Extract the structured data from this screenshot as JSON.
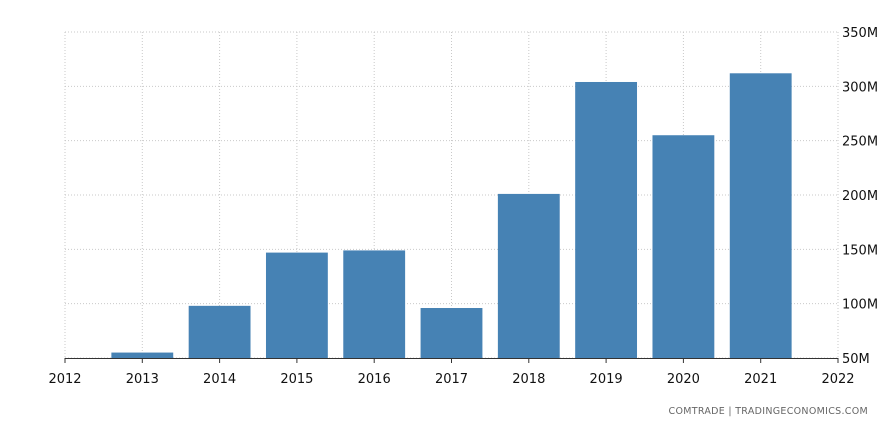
{
  "chart_data": {
    "type": "bar",
    "categories": [
      "2013",
      "2014",
      "2015",
      "2016",
      "2017",
      "2018",
      "2019",
      "2020",
      "2021"
    ],
    "values": [
      55,
      98,
      147,
      149,
      96,
      201,
      304,
      255,
      312
    ],
    "value_unit": "M",
    "x_ticks": [
      "2012",
      "2013",
      "2014",
      "2015",
      "2016",
      "2017",
      "2018",
      "2019",
      "2020",
      "2021",
      "2022"
    ],
    "y_ticks": [
      "50M",
      "100M",
      "150M",
      "200M",
      "250M",
      "300M",
      "350M"
    ],
    "y_tick_values": [
      50,
      100,
      150,
      200,
      250,
      300,
      350
    ],
    "xlim": [
      2012,
      2022
    ],
    "ylim": [
      50,
      350
    ],
    "y_axis_side": "right",
    "grid": true,
    "bar_color": "#4682b4",
    "title": "",
    "xlabel": "",
    "ylabel": ""
  },
  "source": "COMTRADE | TRADINGECONOMICS.COM"
}
